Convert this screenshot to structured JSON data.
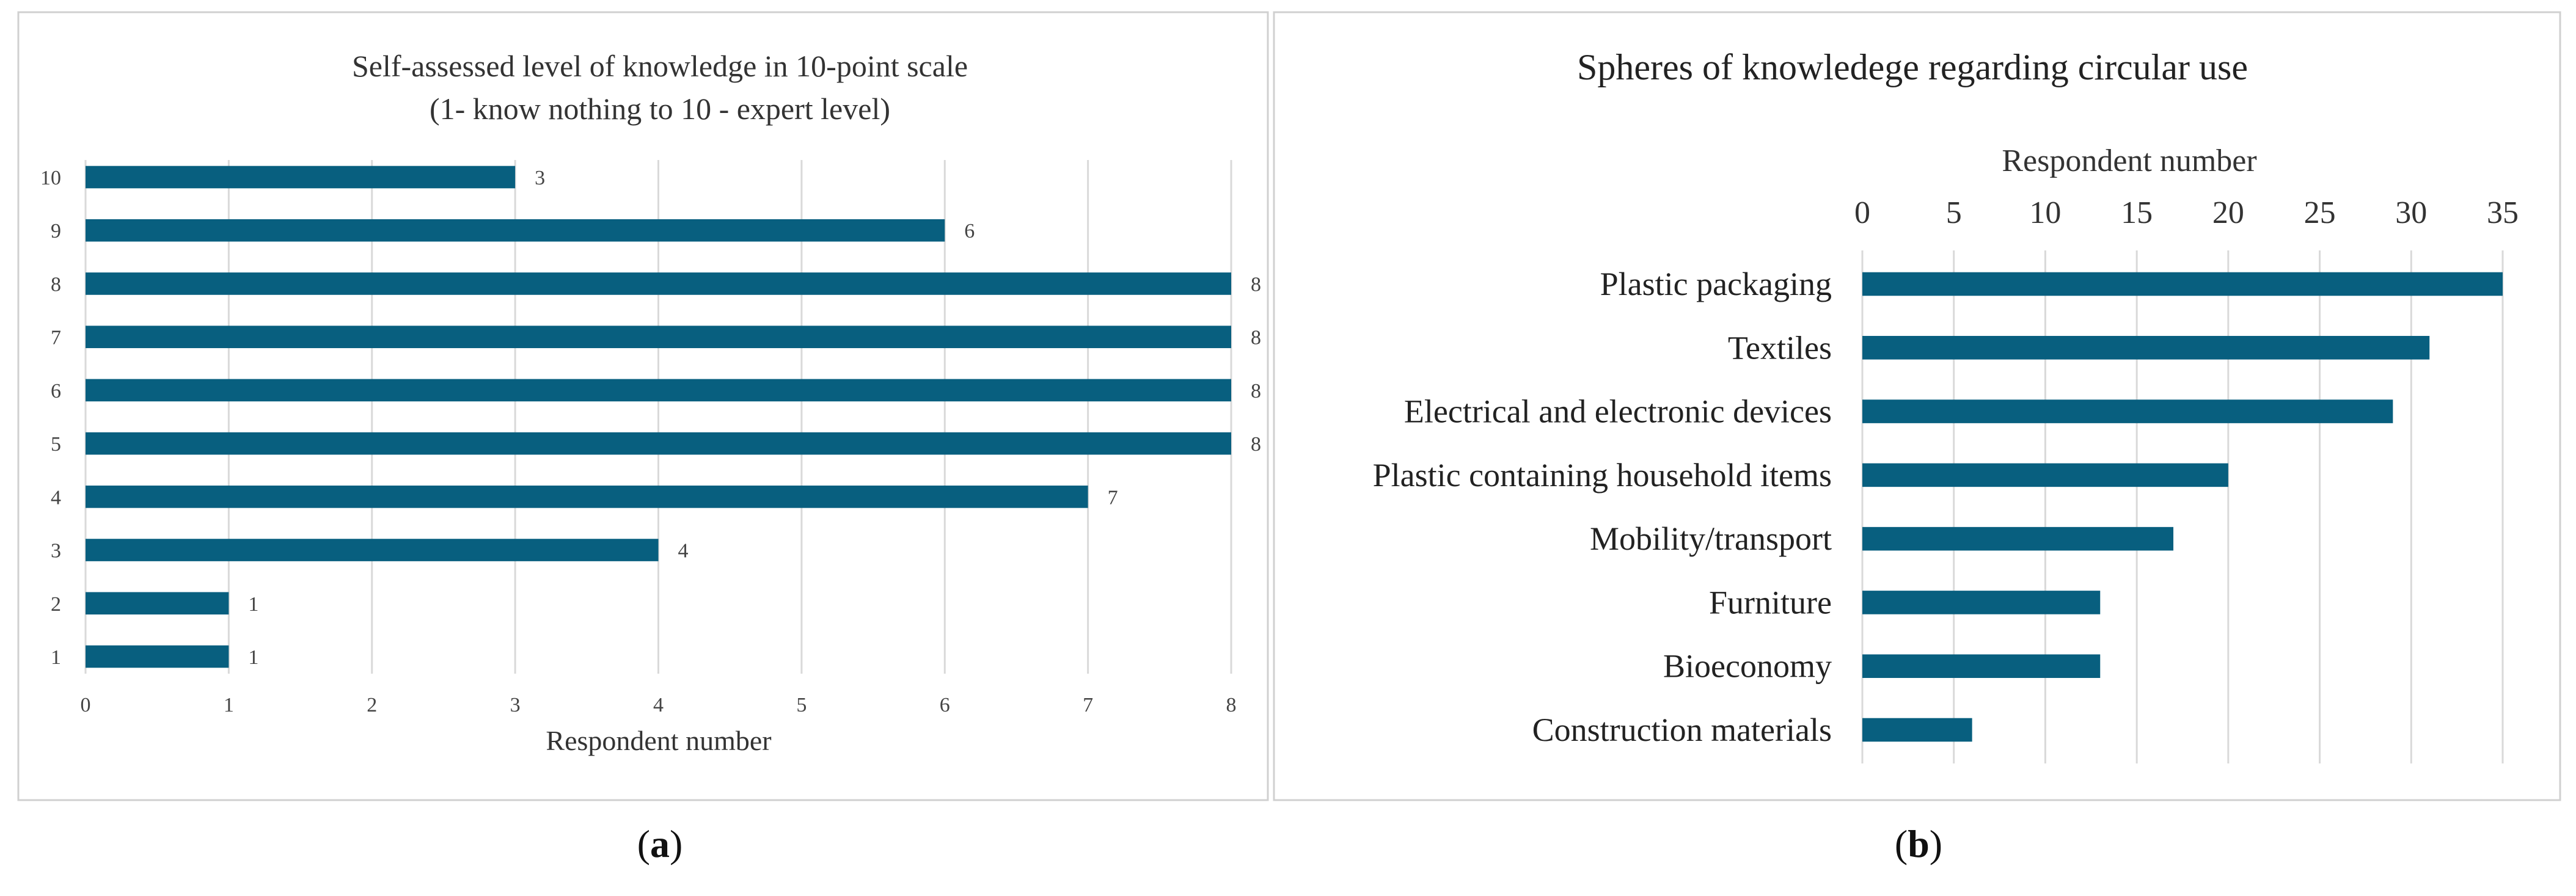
{
  "chart_data": [
    {
      "type": "bar",
      "orientation": "horizontal",
      "title": "Self-assessed level of knowledge in 10-point scale",
      "subtitle": "(1- know nothing to 10 - expert level)",
      "xlabel": "Respondent number",
      "ylabel": "",
      "categories": [
        "10",
        "9",
        "8",
        "7",
        "6",
        "5",
        "4",
        "3",
        "2",
        "1"
      ],
      "values": [
        3,
        6,
        8,
        8,
        8,
        8,
        7,
        4,
        1,
        1
      ],
      "data_labels": [
        "3",
        "6",
        "8",
        "8",
        "8",
        "8",
        "7",
        "4",
        "1",
        "1"
      ],
      "xlim": [
        0,
        8
      ],
      "xticks": [
        "0",
        "1",
        "2",
        "3",
        "4",
        "5",
        "6",
        "7",
        "8"
      ],
      "grid": "vertical",
      "legend": "none",
      "bar_color": "#085f7f"
    },
    {
      "type": "bar",
      "orientation": "horizontal",
      "title": "Spheres of knowledege regarding circular use",
      "xlabel": "Respondent number",
      "xlabel_position": "top",
      "ylabel": "",
      "categories": [
        "Plastic packaging",
        "Textiles",
        "Electrical and electronic devices",
        "Plastic containing household items",
        "Mobility/transport",
        "Furniture",
        "Bioeconomy",
        "Construction materials"
      ],
      "values": [
        35,
        31,
        29,
        20,
        17,
        13,
        13,
        6
      ],
      "xlim": [
        0,
        35
      ],
      "xticks": [
        "0",
        "5",
        "10",
        "15",
        "20",
        "25",
        "30",
        "35"
      ],
      "grid": "vertical",
      "legend": "none",
      "bar_color": "#085f7f"
    }
  ],
  "captions": {
    "a_letter": "a",
    "b_letter": "b"
  }
}
